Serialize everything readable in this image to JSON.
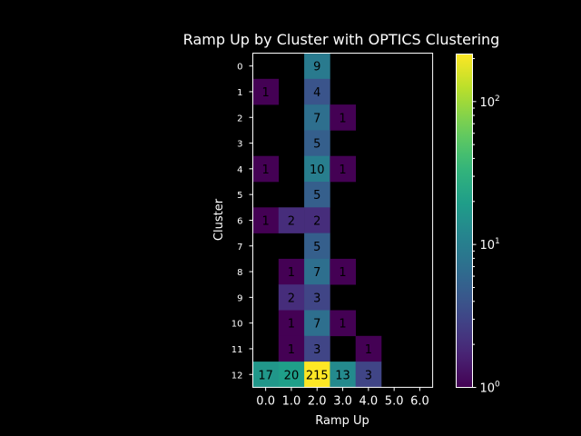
{
  "chart_data": {
    "type": "heatmap",
    "title": "Ramp Up by Cluster with OPTICS Clustering",
    "xlabel": "Ramp Up",
    "ylabel": "Cluster",
    "x_categories": [
      "0.0",
      "1.0",
      "2.0",
      "3.0",
      "4.0",
      "5.0",
      "6.0"
    ],
    "y_categories": [
      "0",
      "1",
      "2",
      "3",
      "4",
      "5",
      "6",
      "7",
      "8",
      "9",
      "10",
      "11",
      "12"
    ],
    "values": [
      [
        null,
        null,
        9,
        null,
        null,
        null,
        null
      ],
      [
        1,
        null,
        4,
        null,
        null,
        null,
        null
      ],
      [
        null,
        null,
        7,
        1,
        null,
        null,
        null
      ],
      [
        null,
        null,
        5,
        null,
        null,
        null,
        null
      ],
      [
        1,
        null,
        10,
        1,
        null,
        null,
        null
      ],
      [
        null,
        null,
        5,
        null,
        null,
        null,
        null
      ],
      [
        1,
        2,
        2,
        null,
        null,
        null,
        null
      ],
      [
        null,
        null,
        5,
        null,
        null,
        null,
        null
      ],
      [
        null,
        1,
        7,
        1,
        null,
        null,
        null
      ],
      [
        null,
        2,
        3,
        null,
        null,
        null,
        null
      ],
      [
        null,
        1,
        7,
        1,
        null,
        null,
        null
      ],
      [
        null,
        1,
        3,
        null,
        1,
        null,
        null
      ],
      [
        17,
        20,
        215,
        13,
        3,
        null,
        null
      ]
    ],
    "colorscale": "viridis",
    "color_scale_type": "log",
    "color_range": [
      1,
      215
    ],
    "colorbar_ticks": [
      {
        "base": "10",
        "exp": "0",
        "value": 1
      },
      {
        "base": "10",
        "exp": "1",
        "value": 10
      },
      {
        "base": "10",
        "exp": "2",
        "value": 100
      }
    ],
    "background": "#000000",
    "text_color": "#ffffff"
  }
}
